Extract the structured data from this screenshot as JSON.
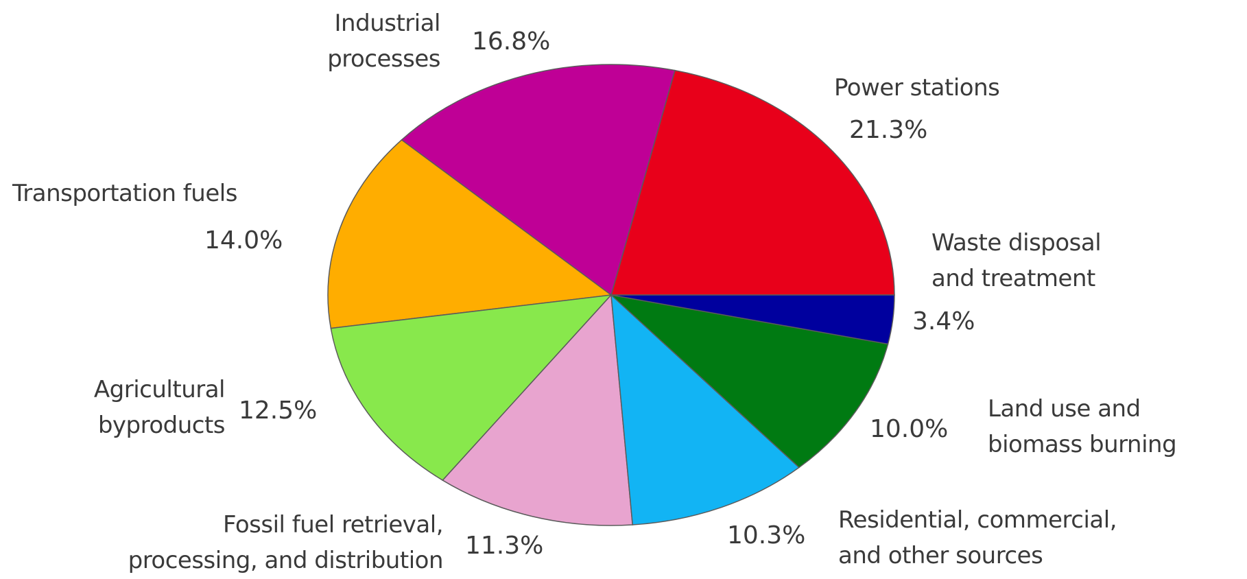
{
  "chart_data": {
    "type": "pie",
    "start_angle_deg": 0,
    "direction": "counterclockwise",
    "slices": [
      {
        "label": "Power stations",
        "label_lines": [
          "Power stations"
        ],
        "value": 21.3,
        "display": "21.3%",
        "color": "#e8001a"
      },
      {
        "label": "Industrial processes",
        "label_lines": [
          "Industrial",
          "processes"
        ],
        "value": 16.8,
        "display": "16.8%",
        "color": "#bf0096"
      },
      {
        "label": "Transportation fuels",
        "label_lines": [
          "Transportation fuels"
        ],
        "value": 14.0,
        "display": "14.0%",
        "color": "#ffad00"
      },
      {
        "label": "Agricultural byproducts",
        "label_lines": [
          "Agricultural",
          "byproducts"
        ],
        "value": 12.5,
        "display": "12.5%",
        "color": "#88e84c"
      },
      {
        "label": "Fossil fuel retrieval, processing, and distribution",
        "label_lines": [
          "Fossil fuel retrieval,",
          "processing, and distribution"
        ],
        "value": 11.3,
        "display": "11.3%",
        "color": "#e8a4cf"
      },
      {
        "label": "Residential, commercial, and other sources",
        "label_lines": [
          "Residential, commercial,",
          "and other sources"
        ],
        "value": 10.3,
        "display": "10.3%",
        "color": "#12b4f4"
      },
      {
        "label": "Land use and biomass burning",
        "label_lines": [
          "Land use and",
          "biomass burning"
        ],
        "value": 10.0,
        "display": "10.0%",
        "color": "#007a12"
      },
      {
        "label": "Waste disposal and treatment",
        "label_lines": [
          "Waste disposal",
          "and treatment"
        ],
        "value": 3.4,
        "display": "3.4%",
        "color": "#00009e"
      }
    ]
  }
}
